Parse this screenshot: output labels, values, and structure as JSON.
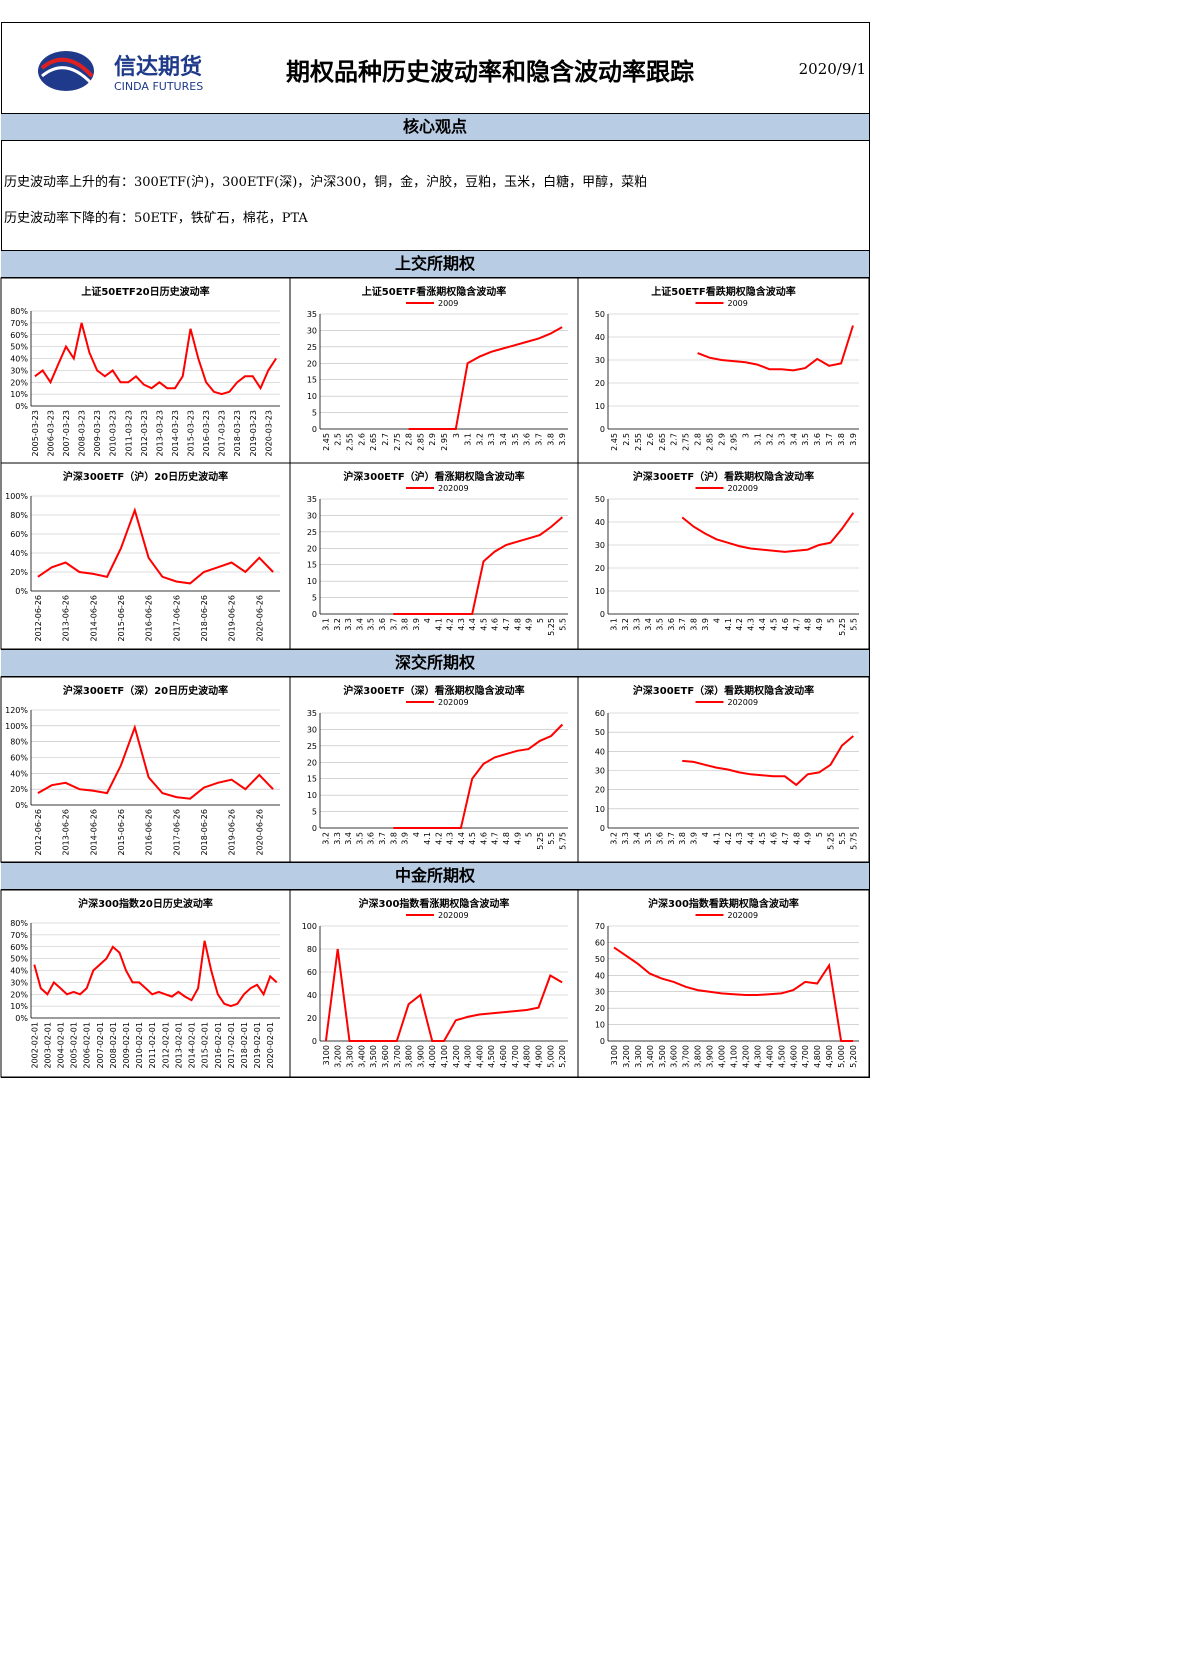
{
  "header": {
    "logo_cn": "信达期货",
    "logo_en": "CINDA FUTURES",
    "title": "期权品种历史波动率和隐含波动率跟踪",
    "date": "2020/9/1"
  },
  "core": {
    "title": "核心观点",
    "lines": [
      "历史波动率上升的有：300ETF(沪)，300ETF(深)，沪深300，铜，金，沪胶，豆粕，玉米，白糖，甲醇，菜粕",
      "历史波动率下降的有：50ETF，铁矿石，棉花，PTA"
    ]
  },
  "sections": [
    "上交所期权",
    "深交所期权",
    "中金所期权"
  ],
  "chart_data": [
    {
      "type": "line",
      "title": "上证50ETF20日历史波动率",
      "categories": [
        "2005-03-23",
        null,
        "2006-03-23",
        null,
        "2007-03-23",
        null,
        "2008-03-23",
        null,
        "2009-03-23",
        null,
        "2010-03-23",
        null,
        "2011-03-23",
        null,
        "2012-03-23",
        null,
        "2013-03-23",
        null,
        "2014-03-23",
        null,
        "2015-03-23",
        null,
        "2016-03-23",
        null,
        "2017-03-23",
        null,
        "2018-03-23",
        null,
        "2019-03-23",
        null,
        "2020-03-23",
        null
      ],
      "series": [
        {
          "color": "#ff0000",
          "values": [
            25,
            30,
            20,
            35,
            50,
            40,
            70,
            45,
            30,
            25,
            30,
            20,
            20,
            25,
            18,
            15,
            20,
            15,
            15,
            25,
            65,
            40,
            20,
            12,
            10,
            12,
            20,
            25,
            25,
            15,
            30,
            40
          ]
        }
      ],
      "ylim": [
        0,
        80
      ],
      "yticks": [
        {
          "value": 0,
          "label": "0%"
        },
        {
          "value": 10,
          "label": "10%"
        },
        {
          "value": 20,
          "label": "20%"
        },
        {
          "value": 30,
          "label": "30%"
        },
        {
          "value": 40,
          "label": "40%"
        },
        {
          "value": 50,
          "label": "50%"
        },
        {
          "value": 60,
          "label": "60%"
        },
        {
          "value": 70,
          "label": "70%"
        },
        {
          "value": 80,
          "label": "80%"
        }
      ],
      "grid": true
    },
    {
      "type": "line",
      "title": "上证50ETF看涨期权隐含波动率",
      "categories": [
        "2.45",
        "2.5",
        "2.55",
        "2.6",
        "2.65",
        "2.7",
        "2.75",
        "2.8",
        "2.85",
        "2.9",
        "2.95",
        "3",
        "3.1",
        "3.2",
        "3.3",
        "3.4",
        "3.5",
        "3.6",
        "3.7",
        "3.8",
        "3.9"
      ],
      "series": [
        {
          "name": "2009",
          "color": "#ff0000",
          "values": [
            null,
            null,
            null,
            null,
            null,
            null,
            null,
            0,
            0,
            0,
            0,
            0,
            20,
            22,
            23.5,
            24.5,
            25.5,
            26.5,
            27.5,
            29,
            31
          ]
        }
      ],
      "ylim": [
        0,
        35
      ],
      "yticks": [
        0,
        5,
        10,
        15,
        20,
        25,
        30,
        35
      ],
      "grid": true
    },
    {
      "type": "line",
      "title": "上证50ETF看跌期权隐含波动率",
      "categories": [
        "2.45",
        "2.5",
        "2.55",
        "2.6",
        "2.65",
        "2.7",
        "2.75",
        "2.8",
        "2.85",
        "2.9",
        "2.95",
        "3",
        "3.1",
        "3.2",
        "3.3",
        "3.4",
        "3.5",
        "3.6",
        "3.7",
        "3.8",
        "3.9"
      ],
      "series": [
        {
          "name": "2009",
          "color": "#ff0000",
          "values": [
            null,
            null,
            null,
            null,
            null,
            null,
            null,
            33,
            31,
            30,
            29.5,
            29,
            28,
            26,
            26,
            25.5,
            26.5,
            30.5,
            27.5,
            28.5,
            45
          ]
        }
      ],
      "ylim": [
        0,
        50
      ],
      "yticks": [
        0,
        10,
        20,
        30,
        40,
        50
      ],
      "grid": true
    },
    {
      "type": "line",
      "title": "沪深300ETF（沪）20日历史波动率",
      "categories": [
        "2012-06-26",
        null,
        "2013-06-26",
        null,
        "2014-06-26",
        null,
        "2015-06-26",
        null,
        "2016-06-26",
        null,
        "2017-06-26",
        null,
        "2018-06-26",
        null,
        "2019-06-26",
        null,
        "2020-06-26",
        null
      ],
      "series": [
        {
          "color": "#ff0000",
          "values": [
            15,
            25,
            30,
            20,
            18,
            15,
            45,
            85,
            35,
            15,
            10,
            8,
            20,
            25,
            30,
            20,
            35,
            20
          ]
        }
      ],
      "ylim": [
        0,
        100
      ],
      "yticks": [
        {
          "value": 0,
          "label": "0%"
        },
        {
          "value": 20,
          "label": "20%"
        },
        {
          "value": 40,
          "label": "40%"
        },
        {
          "value": 60,
          "label": "60%"
        },
        {
          "value": 80,
          "label": "80%"
        },
        {
          "value": 100,
          "label": "100%"
        }
      ],
      "grid": true
    },
    {
      "type": "line",
      "title": "沪深300ETF（沪）看涨期权隐含波动率",
      "categories": [
        "3.1",
        "3.2",
        "3.3",
        "3.4",
        "3.5",
        "3.6",
        "3.7",
        "3.8",
        "3.9",
        "4",
        "4.1",
        "4.2",
        "4.3",
        "4.4",
        "4.5",
        "4.6",
        "4.7",
        "4.8",
        "4.9",
        "5",
        "5.25",
        "5.5"
      ],
      "series": [
        {
          "name": "202009",
          "color": "#ff0000",
          "values": [
            null,
            null,
            null,
            null,
            null,
            null,
            0,
            0,
            0,
            0,
            0,
            0,
            0,
            0,
            16,
            19,
            21,
            22,
            23,
            24,
            26.5,
            29.5
          ]
        }
      ],
      "ylim": [
        0,
        35
      ],
      "yticks": [
        0,
        5,
        10,
        15,
        20,
        25,
        30,
        35
      ],
      "grid": true
    },
    {
      "type": "line",
      "title": "沪深300ETF（沪）看跌期权隐含波动率",
      "categories": [
        "3.1",
        "3.2",
        "3.3",
        "3.4",
        "3.5",
        "3.6",
        "3.7",
        "3.8",
        "3.9",
        "4",
        "4.1",
        "4.2",
        "4.3",
        "4.4",
        "4.5",
        "4.6",
        "4.7",
        "4.8",
        "4.9",
        "5",
        "5.25",
        "5.5"
      ],
      "series": [
        {
          "name": "202009",
          "color": "#ff0000",
          "values": [
            null,
            null,
            null,
            null,
            null,
            null,
            42,
            38,
            35,
            32.5,
            31,
            29.5,
            28.5,
            28,
            27.5,
            27,
            27.5,
            28,
            30,
            31,
            37,
            44
          ]
        }
      ],
      "ylim": [
        0,
        50
      ],
      "yticks": [
        0,
        10,
        20,
        30,
        40,
        50
      ],
      "grid": true
    },
    {
      "type": "line",
      "title": "沪深300ETF（深）20日历史波动率",
      "categories": [
        "2012-06-26",
        null,
        "2013-06-26",
        null,
        "2014-06-26",
        null,
        "2015-06-26",
        null,
        "2016-06-26",
        null,
        "2017-06-26",
        null,
        "2018-06-26",
        null,
        "2019-06-26",
        null,
        "2020-06-26",
        null
      ],
      "series": [
        {
          "color": "#ff0000",
          "values": [
            15,
            25,
            28,
            20,
            18,
            15,
            50,
            98,
            35,
            15,
            10,
            8,
            22,
            28,
            32,
            20,
            38,
            20
          ]
        }
      ],
      "ylim": [
        0,
        120
      ],
      "yticks": [
        {
          "value": 0,
          "label": "0%"
        },
        {
          "value": 20,
          "label": "20%"
        },
        {
          "value": 40,
          "label": "40%"
        },
        {
          "value": 60,
          "label": "60%"
        },
        {
          "value": 80,
          "label": "80%"
        },
        {
          "value": 100,
          "label": "100%"
        },
        {
          "value": 120,
          "label": "120%"
        }
      ],
      "grid": true
    },
    {
      "type": "line",
      "title": "沪深300ETF（深）看涨期权隐含波动率",
      "categories": [
        "3.2",
        "3.3",
        "3.4",
        "3.5",
        "3.6",
        "3.7",
        "3.8",
        "3.9",
        "4",
        "4.1",
        "4.2",
        "4.3",
        "4.4",
        "4.5",
        "4.6",
        "4.7",
        "4.8",
        "4.9",
        "5",
        "5.25",
        "5.5",
        "5.75"
      ],
      "series": [
        {
          "name": "202009",
          "color": "#ff0000",
          "values": [
            null,
            null,
            null,
            null,
            null,
            null,
            0,
            0,
            0,
            0,
            0,
            0,
            0,
            15,
            19.5,
            21.5,
            22.5,
            23.5,
            24,
            26.5,
            28,
            31.5
          ]
        }
      ],
      "ylim": [
        0,
        35
      ],
      "yticks": [
        0,
        5,
        10,
        15,
        20,
        25,
        30,
        35
      ],
      "grid": true
    },
    {
      "type": "line",
      "title": "沪深300ETF（深）看跌期权隐含波动率",
      "categories": [
        "3.2",
        "3.3",
        "3.4",
        "3.5",
        "3.6",
        "3.7",
        "3.8",
        "3.9",
        "4",
        "4.1",
        "4.2",
        "4.3",
        "4.4",
        "4.5",
        "4.6",
        "4.7",
        "4.8",
        "4.9",
        "5",
        "5.25",
        "5.5",
        "5.75"
      ],
      "series": [
        {
          "name": "202009",
          "color": "#ff0000",
          "values": [
            null,
            null,
            null,
            null,
            null,
            null,
            35,
            34.5,
            33,
            31.5,
            30.5,
            29,
            28,
            27.5,
            27,
            27,
            22.5,
            28,
            29,
            33,
            43,
            48
          ]
        }
      ],
      "ylim": [
        0,
        60
      ],
      "yticks": [
        0,
        10,
        20,
        30,
        40,
        50,
        60
      ],
      "grid": true
    },
    {
      "type": "line",
      "title": "沪深300指数20日历史波动率",
      "categories": [
        "2002-02-01",
        null,
        "2003-02-01",
        null,
        "2004-02-01",
        null,
        "2005-02-01",
        null,
        "2006-02-01",
        null,
        "2007-02-01",
        null,
        "2008-02-01",
        null,
        "2009-02-01",
        null,
        "2010-02-01",
        null,
        "2011-02-01",
        null,
        "2012-02-01",
        null,
        "2013-02-01",
        null,
        "2014-02-01",
        null,
        "2015-02-01",
        null,
        "2016-02-01",
        null,
        "2017-02-01",
        null,
        "2018-02-01",
        null,
        "2019-02-01",
        null,
        "2020-02-01",
        null
      ],
      "series": [
        {
          "color": "#ff0000",
          "values": [
            45,
            25,
            20,
            30,
            25,
            20,
            22,
            20,
            25,
            40,
            45,
            50,
            60,
            55,
            40,
            30,
            30,
            25,
            20,
            22,
            20,
            18,
            22,
            18,
            15,
            25,
            65,
            40,
            20,
            12,
            10,
            12,
            20,
            25,
            28,
            20,
            35,
            30
          ]
        }
      ],
      "ylim": [
        0,
        80
      ],
      "yticks": [
        {
          "value": 0,
          "label": "0%"
        },
        {
          "value": 10,
          "label": "10%"
        },
        {
          "value": 20,
          "label": "20%"
        },
        {
          "value": 30,
          "label": "30%"
        },
        {
          "value": 40,
          "label": "40%"
        },
        {
          "value": 50,
          "label": "50%"
        },
        {
          "value": 60,
          "label": "60%"
        },
        {
          "value": 70,
          "label": "70%"
        },
        {
          "value": 80,
          "label": "80%"
        }
      ],
      "grid": true
    },
    {
      "type": "line",
      "title": "沪深300指数看涨期权隐含波动率",
      "categories": [
        "3100",
        "3,200",
        "3,300",
        "3,400",
        "3,500",
        "3,600",
        "3,700",
        "3,800",
        "3,900",
        "4,000",
        "4,100",
        "4,200",
        "4,300",
        "4,400",
        "4,500",
        "4,600",
        "4,700",
        "4,800",
        "4,900",
        "5,000",
        "5,200"
      ],
      "series": [
        {
          "name": "202009",
          "color": "#ff0000",
          "values": [
            0,
            80,
            0,
            0,
            0,
            0,
            0,
            32,
            40,
            0,
            0,
            18,
            21,
            23,
            24,
            25,
            26,
            27,
            29,
            57,
            51
          ]
        }
      ],
      "ylim": [
        0,
        100
      ],
      "yticks": [
        0,
        20,
        40,
        60,
        80,
        100
      ],
      "grid": true
    },
    {
      "type": "line",
      "title": "沪深300指数看跌期权隐含波动率",
      "categories": [
        "3100",
        "3,200",
        "3,300",
        "3,400",
        "3,500",
        "3,600",
        "3,700",
        "3,800",
        "3,900",
        "4,000",
        "4,100",
        "4,200",
        "4,300",
        "4,400",
        "4,500",
        "4,600",
        "4,700",
        "4,800",
        "4,900",
        "5,000",
        "5,200"
      ],
      "series": [
        {
          "name": "202009",
          "color": "#ff0000",
          "values": [
            57,
            52,
            47,
            41,
            38,
            36,
            33,
            31,
            30,
            29,
            28.5,
            28,
            28,
            28.5,
            29,
            31,
            36,
            35,
            46,
            0,
            0
          ]
        }
      ],
      "ylim": [
        0,
        70
      ],
      "yticks": [
        0,
        10,
        20,
        30,
        40,
        50,
        60,
        70
      ],
      "grid": true
    }
  ]
}
